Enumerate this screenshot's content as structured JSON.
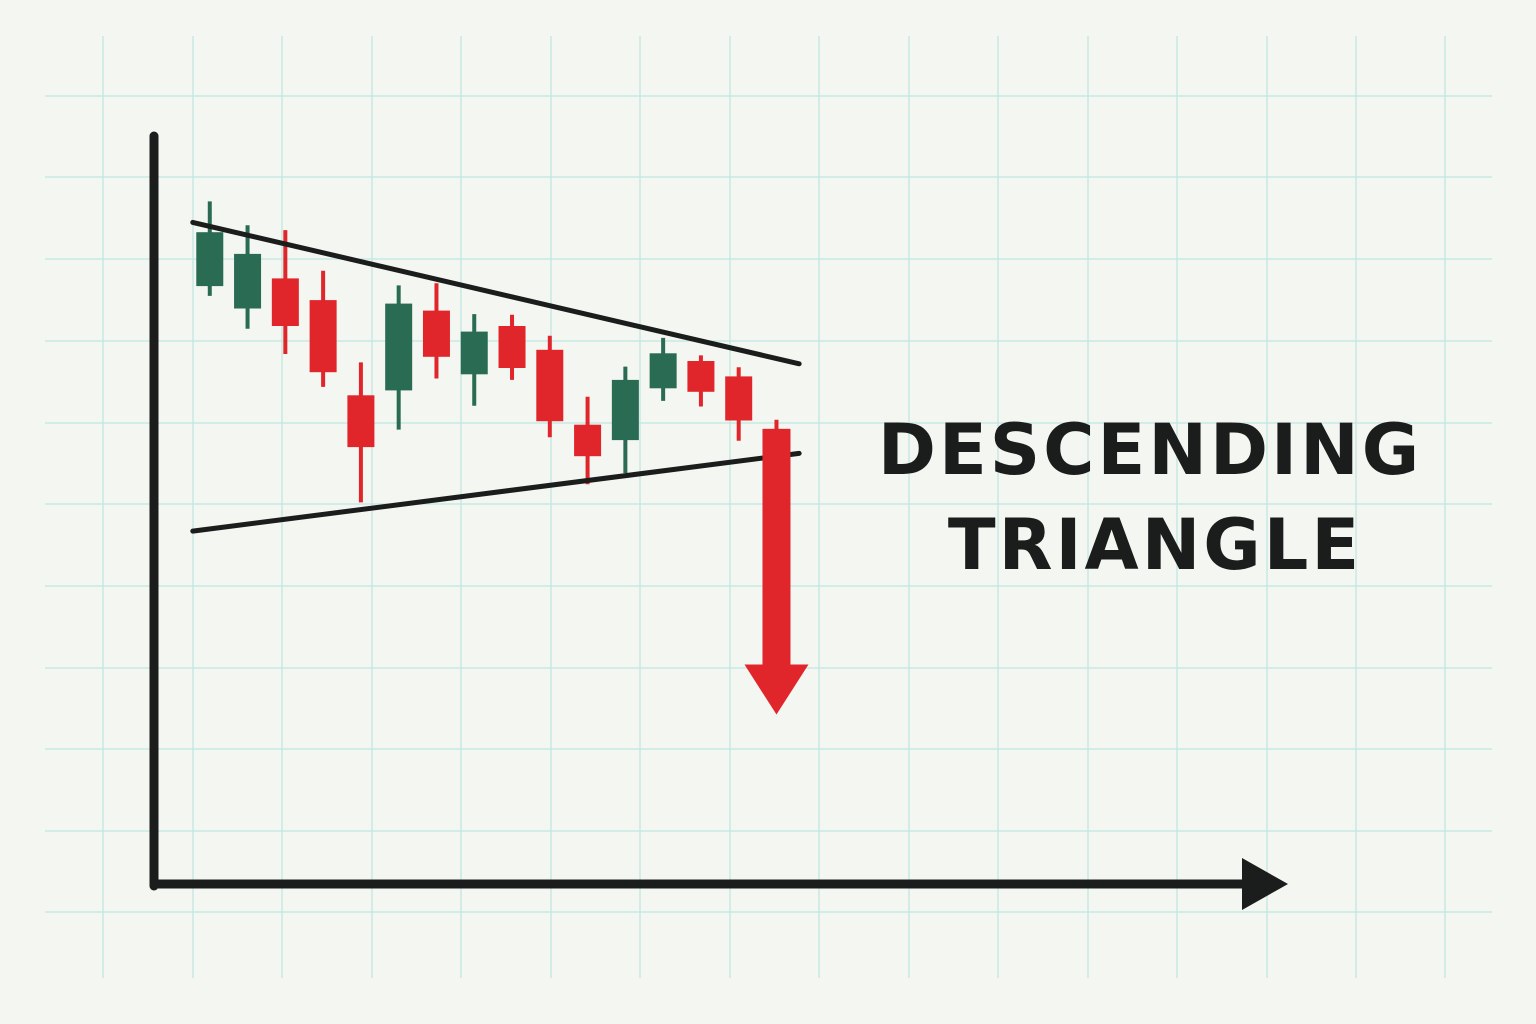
{
  "colors": {
    "background": "#f3f6f1",
    "grid": "#bfe6e3",
    "axis": "#1b1d1d",
    "bullish": "#2a6b54",
    "bearish": "#e0262b",
    "trendline": "#1b1d1d",
    "title": "#1b1d1d"
  },
  "title": {
    "line1": "DESCENDING",
    "line2": "TRIANGLE"
  },
  "chart_data": {
    "type": "candlestick",
    "title": "DESCENDING TRIANGLE",
    "xlabel": "",
    "ylabel": "",
    "grid": true,
    "ylim": [
      0,
      100
    ],
    "xlim": [
      0,
      18
    ],
    "candles": [
      {
        "x": 1,
        "open": 85.7,
        "close": 93.4,
        "high": 97.8,
        "low": 84.3,
        "direction": "up"
      },
      {
        "x": 2,
        "open": 82.5,
        "close": 90.3,
        "high": 94.4,
        "low": 79.6,
        "direction": "up"
      },
      {
        "x": 3,
        "open": 86.8,
        "close": 80.0,
        "high": 93.7,
        "low": 76.0,
        "direction": "down"
      },
      {
        "x": 4,
        "open": 83.7,
        "close": 73.4,
        "high": 87.9,
        "low": 71.3,
        "direction": "down"
      },
      {
        "x": 5,
        "open": 70.1,
        "close": 62.7,
        "high": 74.8,
        "low": 54.8,
        "direction": "down"
      },
      {
        "x": 6,
        "open": 70.8,
        "close": 83.2,
        "high": 85.8,
        "low": 65.2,
        "direction": "up"
      },
      {
        "x": 7,
        "open": 82.2,
        "close": 75.6,
        "high": 86.1,
        "low": 72.5,
        "direction": "down"
      },
      {
        "x": 8,
        "open": 73.1,
        "close": 79.2,
        "high": 81.7,
        "low": 68.6,
        "direction": "up"
      },
      {
        "x": 9,
        "open": 80.0,
        "close": 74.0,
        "high": 81.6,
        "low": 72.3,
        "direction": "down"
      },
      {
        "x": 10,
        "open": 76.6,
        "close": 66.4,
        "high": 78.6,
        "low": 64.1,
        "direction": "down"
      },
      {
        "x": 11,
        "open": 65.9,
        "close": 61.4,
        "high": 69.9,
        "low": 57.4,
        "direction": "down"
      },
      {
        "x": 12,
        "open": 63.7,
        "close": 72.3,
        "high": 74.2,
        "low": 59.0,
        "direction": "up"
      },
      {
        "x": 13,
        "open": 71.1,
        "close": 76.1,
        "high": 78.3,
        "low": 69.3,
        "direction": "up"
      },
      {
        "x": 14,
        "open": 75.0,
        "close": 70.6,
        "high": 75.8,
        "low": 68.5,
        "direction": "down"
      },
      {
        "x": 15,
        "open": 72.8,
        "close": 66.5,
        "high": 74.1,
        "low": 63.6,
        "direction": "down"
      },
      {
        "x": 16,
        "open": 65.3,
        "close": 36.0,
        "high": 66.6,
        "low": 36.0,
        "direction": "down"
      }
    ],
    "trendlines": [
      {
        "name": "resistance",
        "from": {
          "x": 0.55,
          "y": 94.8
        },
        "to": {
          "x": 16.6,
          "y": 74.6
        }
      },
      {
        "name": "support",
        "from": {
          "x": 0.55,
          "y": 50.7
        },
        "to": {
          "x": 16.6,
          "y": 61.8
        }
      }
    ],
    "breakout_arrow": {
      "x": 16,
      "from_y": 65.3,
      "to_y": 24.5,
      "direction": "down"
    }
  }
}
